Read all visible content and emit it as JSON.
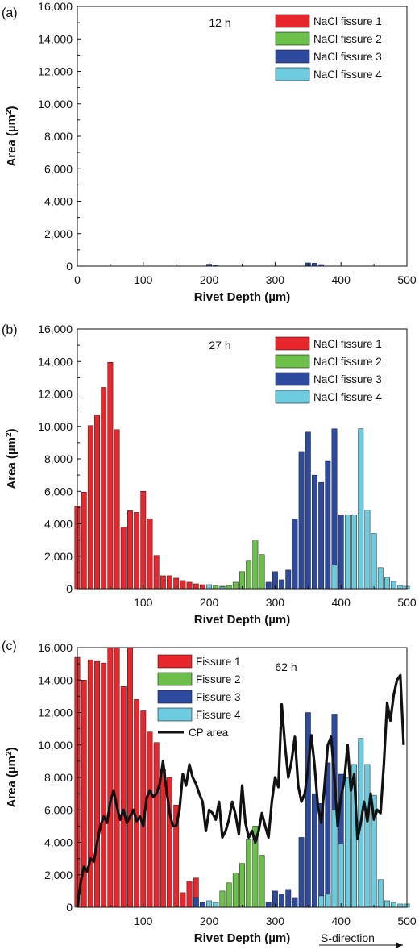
{
  "chart_data": [
    {
      "panel_label": "(a)",
      "type": "bar",
      "annotation": "12 h",
      "xlabel": "Rivet Depth (µm)",
      "ylabel": "Area (µm²)",
      "ylabel_base": "Area (µm",
      "ylabel_sup": "2",
      "ylabel_close": ")",
      "xlim": [
        0,
        500
      ],
      "ylim": [
        0,
        16000
      ],
      "xticks": [
        0,
        100,
        200,
        300,
        400,
        500
      ],
      "xtick_labels": [
        "0",
        "100",
        "200",
        "300",
        "400",
        "500"
      ],
      "yticks": [
        0,
        2000,
        4000,
        6000,
        8000,
        10000,
        12000,
        14000,
        16000
      ],
      "ytick_labels": [
        "0",
        "2,000",
        "4,000",
        "6,000",
        "8,000",
        "10,000",
        "12,000",
        "14,000",
        "16,000"
      ],
      "legend_position": "top-right",
      "series": [
        {
          "name": "NaCl fissure 1",
          "color": "#e8262c",
          "x": [],
          "values": []
        },
        {
          "name": "NaCl fissure 2",
          "color": "#6cc04a",
          "x": [],
          "values": []
        },
        {
          "name": "NaCl fissure 3",
          "color": "#2e4a9e",
          "x": [
            200,
            210,
            350,
            360,
            370
          ],
          "values": [
            120,
            80,
            200,
            180,
            100
          ]
        },
        {
          "name": "NaCl fissure 4",
          "color": "#6ccbdf",
          "x": [],
          "values": []
        }
      ]
    },
    {
      "panel_label": "(b)",
      "type": "bar",
      "annotation": "27 h",
      "xlabel": "Rivet Depth (µm)",
      "ylabel": "Area (µm²)",
      "ylabel_base": "Area (µm",
      "ylabel_sup": "2",
      "ylabel_close": ")",
      "xlim": [
        0,
        500
      ],
      "ylim": [
        0,
        16000
      ],
      "xticks": [
        100,
        200,
        300,
        400,
        500
      ],
      "xtick_labels": [
        "100",
        "200",
        "300",
        "400",
        "500"
      ],
      "yticks": [
        0,
        2000,
        4000,
        6000,
        8000,
        10000,
        12000,
        14000,
        16000
      ],
      "ytick_labels": [
        "0",
        "2,000",
        "4,000",
        "6,000",
        "8,000",
        "10,000",
        "12,000",
        "14,000",
        "16,000"
      ],
      "legend_position": "top-right",
      "series": [
        {
          "name": "NaCl fissure 1",
          "color": "#e8262c",
          "x": [
            0,
            10,
            20,
            30,
            40,
            50,
            60,
            70,
            80,
            90,
            100,
            110,
            120,
            130,
            140,
            150,
            160,
            170,
            180,
            190
          ],
          "values": [
            5100,
            5950,
            10050,
            10700,
            12400,
            13950,
            9800,
            3800,
            4800,
            4700,
            6000,
            4300,
            2050,
            800,
            800,
            650,
            500,
            400,
            300,
            250
          ]
        },
        {
          "name": "NaCl fissure 2",
          "color": "#6cc04a",
          "x": [
            210,
            220,
            230,
            240,
            250,
            260,
            270,
            280
          ],
          "values": [
            200,
            150,
            200,
            400,
            1050,
            1700,
            3000,
            2100
          ]
        },
        {
          "name": "NaCl fissure 3",
          "color": "#2e4a9e",
          "x": [
            290,
            300,
            310,
            320,
            330,
            340,
            350,
            360,
            370,
            380,
            390,
            400
          ],
          "values": [
            400,
            1050,
            550,
            1150,
            4300,
            8450,
            9650,
            7000,
            6550,
            7850,
            9850,
            4550
          ]
        },
        {
          "name": "NaCl fissure 4",
          "color": "#6ccbdf",
          "x": [
            200,
            220,
            390,
            410,
            420,
            430,
            440,
            450,
            460,
            470,
            480,
            490,
            500
          ],
          "values": [
            250,
            100,
            1450,
            4550,
            4550,
            9850,
            4850,
            3400,
            1300,
            700,
            450,
            200,
            150
          ]
        }
      ]
    },
    {
      "panel_label": "(c)",
      "type": "bar",
      "annotation": "62 h",
      "xlabel": "Rivet Depth (µm)",
      "ylabel": "Area (µm²)",
      "ylabel_base": "Area (µm",
      "ylabel_sup": "2",
      "ylabel_close": ")",
      "direction_label": "S-direction",
      "xlim": [
        0,
        500
      ],
      "ylim": [
        0,
        16000
      ],
      "xticks": [
        100,
        200,
        300,
        400,
        500
      ],
      "xtick_labels": [
        "100",
        "200",
        "300",
        "400",
        "500"
      ],
      "yticks": [
        0,
        2000,
        4000,
        6000,
        8000,
        10000,
        12000,
        14000,
        16000
      ],
      "ytick_labels": [
        "0",
        "2,000",
        "4,000",
        "6,000",
        "8,000",
        "10,000",
        "12,000",
        "14,000",
        "16,000"
      ],
      "legend_position": "top-left",
      "series": [
        {
          "name": "Fissure 1",
          "color": "#e8262c",
          "x": [
            0,
            10,
            20,
            30,
            40,
            50,
            60,
            70,
            80,
            90,
            100,
            110,
            120,
            130,
            140,
            150,
            160,
            170,
            180
          ],
          "values": [
            15400,
            14000,
            15250,
            15150,
            15050,
            16000,
            16000,
            13600,
            16000,
            12800,
            12100,
            10800,
            10150,
            8500,
            8000,
            6300,
            900,
            1600,
            1800
          ]
        },
        {
          "name": "Fissure 2",
          "color": "#6cc04a",
          "x": [
            220,
            230,
            240,
            250,
            260,
            270,
            280
          ],
          "values": [
            1000,
            1500,
            2100,
            2700,
            4200,
            5000,
            3200
          ]
        },
        {
          "name": "Fissure 3",
          "color": "#2e4a9e",
          "x": [
            180,
            190,
            200,
            290,
            300,
            310,
            320,
            330,
            340,
            350,
            360,
            370,
            380,
            390,
            400,
            410
          ],
          "values": [
            600,
            300,
            200,
            300,
            1000,
            800,
            1100,
            600,
            4300,
            12000,
            7000,
            6400,
            8900,
            11900,
            8200,
            4200
          ]
        },
        {
          "name": "Fissure 4",
          "color": "#6ccbdf",
          "x": [
            200,
            210,
            370,
            380,
            390,
            400,
            410,
            420,
            430,
            440,
            450,
            460,
            470,
            480,
            490,
            500
          ],
          "values": [
            400,
            300,
            700,
            800,
            6000,
            3900,
            8000,
            8800,
            10400,
            8800,
            6900,
            1700,
            400,
            300,
            200,
            200
          ]
        },
        {
          "name": "CP area",
          "color": "#111111",
          "kind": "line",
          "x": [
            0,
            5,
            10,
            15,
            20,
            25,
            30,
            35,
            40,
            45,
            50,
            55,
            60,
            65,
            70,
            75,
            80,
            85,
            90,
            95,
            100,
            105,
            110,
            115,
            120,
            125,
            130,
            135,
            140,
            145,
            150,
            155,
            160,
            165,
            170,
            175,
            180,
            185,
            190,
            195,
            200,
            205,
            210,
            215,
            220,
            225,
            230,
            235,
            240,
            245,
            250,
            255,
            260,
            265,
            270,
            275,
            280,
            285,
            290,
            295,
            300,
            305,
            310,
            315,
            320,
            325,
            330,
            335,
            340,
            345,
            350,
            355,
            360,
            365,
            370,
            375,
            380,
            385,
            390,
            395,
            400,
            405,
            410,
            415,
            420,
            425,
            430,
            435,
            440,
            445,
            450,
            455,
            460,
            465,
            470,
            475,
            480,
            485,
            490,
            495
          ],
          "values": [
            0,
            1500,
            2500,
            2200,
            3000,
            2800,
            4000,
            5000,
            5600,
            5200,
            6500,
            7200,
            6200,
            5400,
            6000,
            5200,
            5600,
            6000,
            5300,
            5600,
            5000,
            6700,
            7200,
            6800,
            7000,
            7600,
            9000,
            7300,
            5800,
            5000,
            5000,
            6000,
            8200,
            7500,
            8800,
            8000,
            7600,
            7000,
            6500,
            4700,
            6000,
            5800,
            5400,
            6500,
            4300,
            4700,
            5400,
            6500,
            5700,
            4500,
            7500,
            5200,
            4300,
            4700,
            4000,
            4700,
            5800,
            5000,
            4300,
            6500,
            8000,
            7400,
            12500,
            10000,
            8000,
            9000,
            10500,
            7500,
            6500,
            7000,
            8600,
            10600,
            8700,
            6200,
            5200,
            7500,
            10000,
            10500,
            8000,
            5000,
            6800,
            7800,
            10000,
            7200,
            8200,
            4200,
            5200,
            6500,
            5300,
            7000,
            5400,
            6000,
            5800,
            8800,
            12600,
            11500,
            13100,
            14000,
            14300,
            10000
          ]
        }
      ]
    }
  ]
}
